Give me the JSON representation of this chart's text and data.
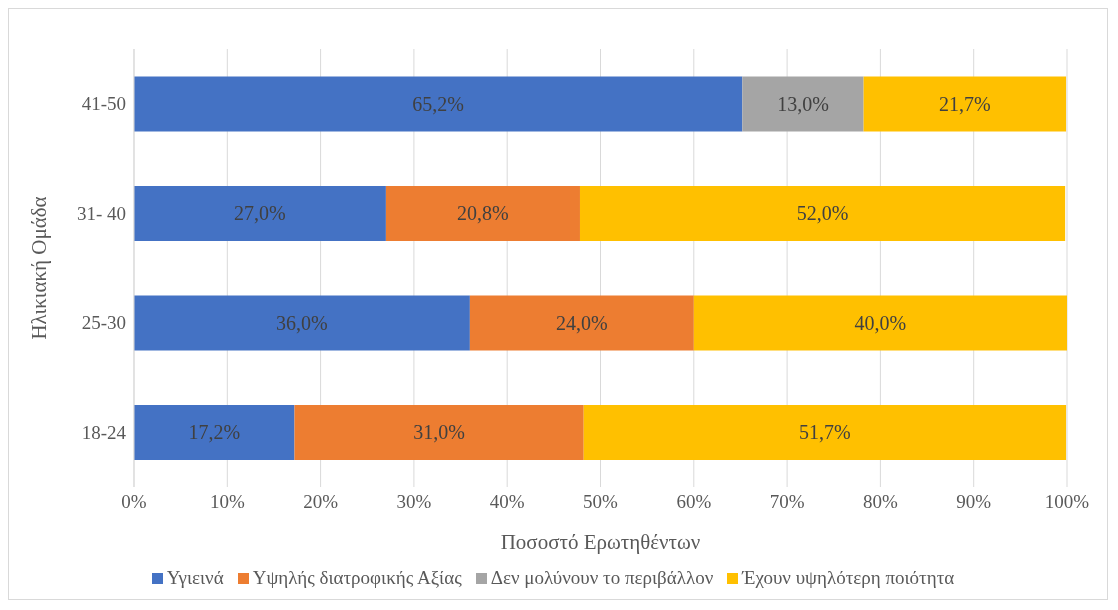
{
  "chart_data": {
    "type": "bar",
    "orientation": "horizontal",
    "stacked": true,
    "xlabel": "Ποσοστό Ερωτηθέντων",
    "ylabel": "Ηλικιακή Ομάδα",
    "categories": [
      "41-50",
      "31- 40",
      "25-30",
      "18-24"
    ],
    "series": [
      {
        "name": "Υγιεινά",
        "color": "#4472c4",
        "values": [
          65.2,
          27.0,
          36.0,
          17.2
        ],
        "value_labels": [
          "65,2%",
          "27,0%",
          "36,0%",
          "17,2%"
        ]
      },
      {
        "name": "Υψηλής διατροφικής Αξίας",
        "color": "#ed7d31",
        "values": [
          null,
          20.8,
          24.0,
          31.0
        ],
        "value_labels": [
          null,
          "20,8%",
          "24,0%",
          "31,0%"
        ]
      },
      {
        "name": "Δεν μολύνουν το περιβάλλον",
        "color": "#a5a5a5",
        "values": [
          13.0,
          null,
          null,
          null
        ],
        "value_labels": [
          "13,0%",
          null,
          null,
          null
        ]
      },
      {
        "name": "Έχουν υψηλότερη ποιότητα",
        "color": "#ffc000",
        "values": [
          21.7,
          52.0,
          40.0,
          51.7
        ],
        "value_labels": [
          "21,7%",
          "52,0%",
          "40,0%",
          "51,7%"
        ]
      }
    ],
    "xlim": [
      0,
      100
    ],
    "xticks": [
      {
        "value": 0,
        "label": "0%"
      },
      {
        "value": 10,
        "label": "10%"
      },
      {
        "value": 20,
        "label": "20%"
      },
      {
        "value": 30,
        "label": "30%"
      },
      {
        "value": 40,
        "label": "40%"
      },
      {
        "value": 50,
        "label": "50%"
      },
      {
        "value": 60,
        "label": "60%"
      },
      {
        "value": 70,
        "label": "70%"
      },
      {
        "value": 80,
        "label": "80%"
      },
      {
        "value": 90,
        "label": "90%"
      },
      {
        "value": 100,
        "label": "100%"
      }
    ],
    "grid": "x",
    "legend": "bottom"
  }
}
